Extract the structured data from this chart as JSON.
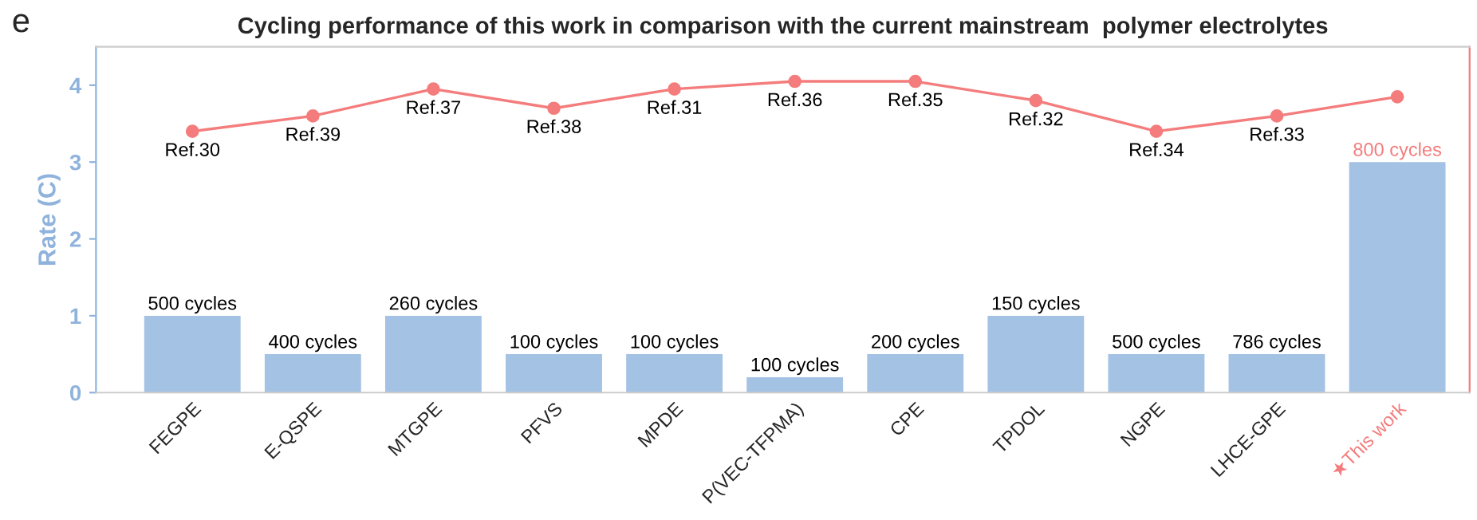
{
  "chart_data": {
    "type": "bar",
    "title": "Cycling performance of this work in comparison with the current mainstream  polymer electrolytes",
    "annotations": [
      "e",
      {
        "text": "500 cycles",
        "x": "FEGPE",
        "y": 1
      },
      {
        "text": "400 cycles",
        "x": "E-QSPE",
        "y": 0.5
      },
      {
        "text": "260 cycles",
        "x": "MTGPE",
        "y": 1
      },
      {
        "text": "100 cycles",
        "x": "PFVS",
        "y": 0.5
      },
      {
        "text": "100 cycles",
        "x": "MPDE",
        "y": 0.5
      },
      {
        "text": "100 cycles",
        "x": "P(VEC-TFPMA)",
        "y": 0.2
      },
      {
        "text": "200 cycles",
        "x": "CPE",
        "y": 0.5
      },
      {
        "text": "150 cycles",
        "x": "TPDOL",
        "y": 1
      },
      {
        "text": "500 cycles",
        "x": "NGPE",
        "y": 0.5
      },
      {
        "text": "786 cycles",
        "x": "LHCE-GPE",
        "y": 0.5
      },
      {
        "text": "800 cycles",
        "x": "★This work",
        "y": 3
      },
      {
        "text": "Ref.30",
        "x": "FEGPE",
        "y": 3.4
      },
      {
        "text": "Ref.39",
        "x": "E-QSPE",
        "y": 3.6
      },
      {
        "text": "Ref.37",
        "x": "MTGPE",
        "y": 3.95
      },
      {
        "text": "Ref.38",
        "x": "PFVS",
        "y": 3.7
      },
      {
        "text": "Ref.31",
        "x": "MPDE",
        "y": 3.95
      },
      {
        "text": "Ref.36",
        "x": "P(VEC-TFPMA)",
        "y": 4.05
      },
      {
        "text": "Ref.35",
        "x": "CPE",
        "y": 4.05
      },
      {
        "text": "Ref.32",
        "x": "TPDOL",
        "y": 3.8
      },
      {
        "text": "Ref.34",
        "x": "NGPE",
        "y": 3.4
      },
      {
        "text": "Ref.33",
        "x": "LHCE-GPE",
        "y": 3.6
      }
    ],
    "ylabel": "Rate (C)",
    "categories": [
      "FEGPE",
      "E-QSPE",
      "MTGPE",
      "PFVS",
      "MPDE",
      "P(VEC-TFPMA)",
      "CPE",
      "TPDOL",
      "NGPE",
      "LHCE-GPE",
      "★This work"
    ],
    "series": [
      {
        "color": "#a4c2e4",
        "values": [
          1,
          0.5,
          1,
          0.5,
          0.5,
          0.2,
          0.5,
          1,
          0.5,
          0.5,
          3
        ]
      },
      {
        "type": "line",
        "color": "#f47c7c",
        "marker": "circle",
        "values": [
          3.4,
          3.6,
          3.95,
          3.7,
          3.95,
          4.05,
          4.05,
          3.8,
          3.4,
          3.6,
          3.85
        ]
      }
    ],
    "ylim": [
      0,
      4.5
    ],
    "yticks": [
      0,
      1,
      2,
      3,
      4
    ],
    "grid": false,
    "legend": false
  }
}
